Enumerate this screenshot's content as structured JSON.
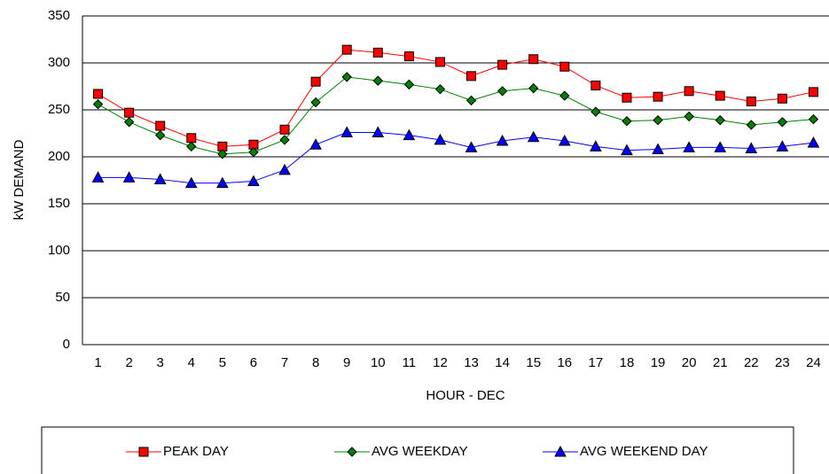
{
  "chart_data": {
    "type": "line",
    "x_label": "HOUR - DEC",
    "y_label": "kW DEMAND",
    "categories": [
      "1",
      "2",
      "3",
      "4",
      "5",
      "6",
      "7",
      "8",
      "9",
      "10",
      "11",
      "12",
      "13",
      "14",
      "15",
      "16",
      "17",
      "18",
      "19",
      "20",
      "21",
      "22",
      "23",
      "24"
    ],
    "series": [
      {
        "name": "PEAK DAY",
        "color": "#ff0000",
        "marker": "square",
        "values": [
          267,
          247,
          233,
          220,
          211,
          213,
          229,
          280,
          314,
          311,
          307,
          301,
          286,
          298,
          304,
          296,
          276,
          263,
          264,
          270,
          265,
          259,
          262,
          269
        ]
      },
      {
        "name": "AVG WEEKDAY",
        "color": "#008000",
        "marker": "diamond",
        "values": [
          256,
          237,
          223,
          211,
          203,
          205,
          218,
          258,
          285,
          281,
          277,
          272,
          260,
          270,
          273,
          265,
          248,
          238,
          239,
          243,
          239,
          234,
          237,
          240
        ]
      },
      {
        "name": "AVG WEEKEND DAY",
        "color": "#0000ff",
        "marker": "triangle",
        "values": [
          178,
          178,
          176,
          172,
          172,
          174,
          186,
          213,
          226,
          226,
          223,
          218,
          210,
          217,
          221,
          217,
          211,
          207,
          208,
          210,
          210,
          209,
          211,
          215
        ]
      }
    ],
    "ylim": [
      0,
      350
    ],
    "yticks": [
      0,
      50,
      100,
      150,
      200,
      250,
      300,
      350
    ],
    "grid": true,
    "legend": "bottom"
  }
}
